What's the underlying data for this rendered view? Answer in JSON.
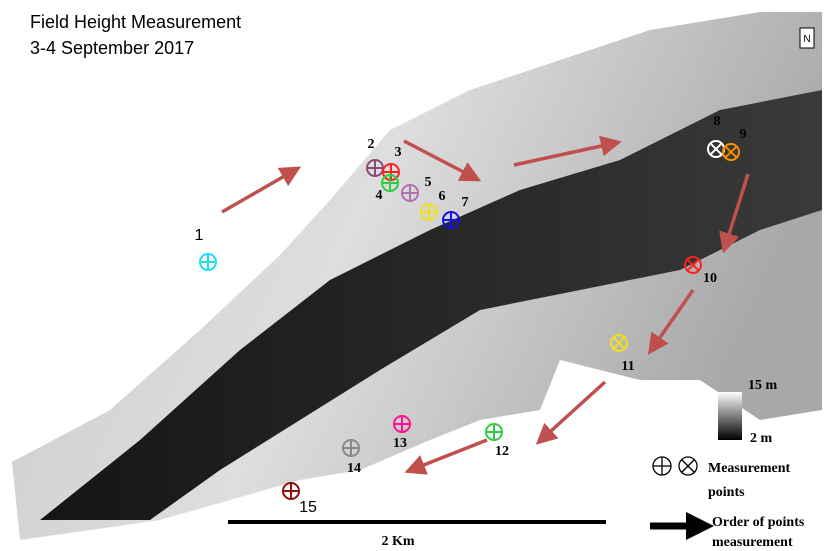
{
  "header": {
    "title": "Field Height Measurement",
    "subtitle": "3-4 September 2017"
  },
  "north": "N",
  "points": [
    {
      "label": "1"
    },
    {
      "label": "2"
    },
    {
      "label": "3"
    },
    {
      "label": "4"
    },
    {
      "label": "5"
    },
    {
      "label": "6"
    },
    {
      "label": "7"
    },
    {
      "label": "8"
    },
    {
      "label": "9"
    },
    {
      "label": "10"
    },
    {
      "label": "11"
    },
    {
      "label": "12"
    },
    {
      "label": "13"
    },
    {
      "label": "14"
    },
    {
      "label": "15"
    }
  ],
  "legend": {
    "high": "15 m",
    "low": "2 m",
    "points": [
      "Measurement",
      "points"
    ],
    "order": [
      "Order of points",
      "measurement"
    ]
  },
  "scale": "2 Km"
}
